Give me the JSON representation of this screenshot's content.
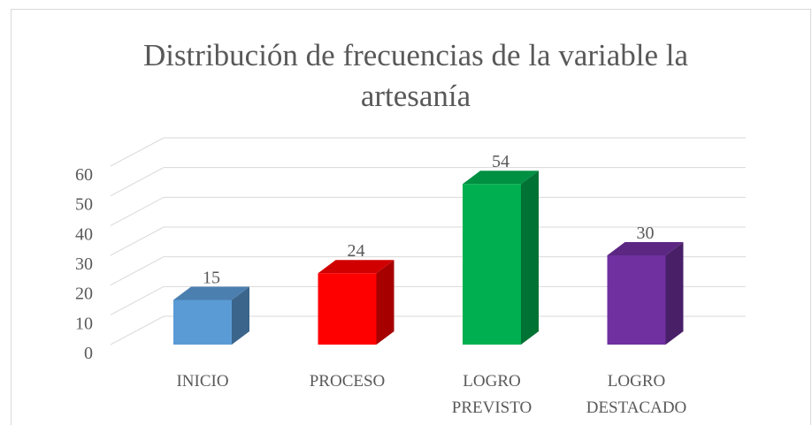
{
  "chart_data": {
    "type": "bar3d",
    "title": "Distribución de frecuencias de la variable la artesanía",
    "categories": [
      "INICIO",
      "PROCESO",
      "LOGRO PREVISTO",
      "LOGRO DESTACADO"
    ],
    "values": [
      15,
      24,
      54,
      30
    ],
    "colors": [
      "#5b9bd5",
      "#ff0000",
      "#00b050",
      "#7030a0"
    ],
    "ylim": [
      0,
      60
    ],
    "yticks": [
      0,
      10,
      20,
      30,
      40,
      50,
      60
    ],
    "grid": true
  }
}
